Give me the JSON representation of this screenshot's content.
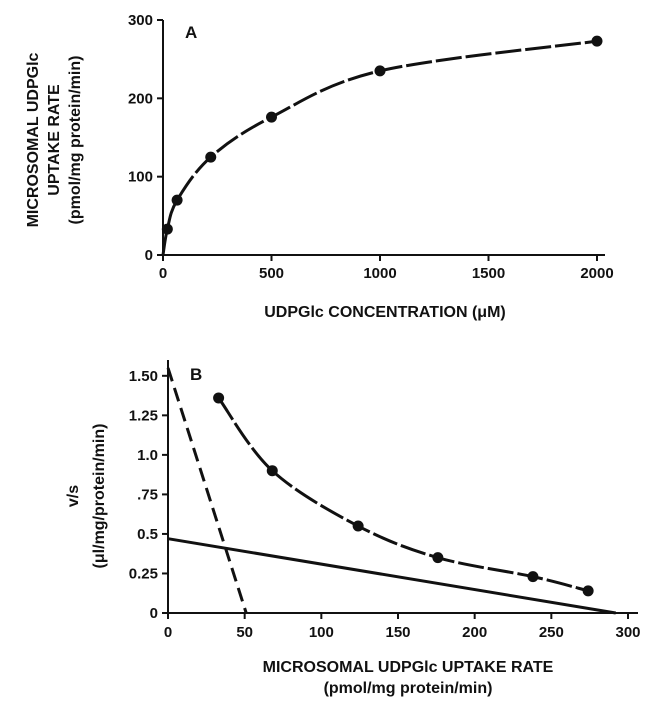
{
  "chart_data": [
    {
      "panel": "A",
      "type": "scatter",
      "xlabel": "UDPGlc CONCENTRATION (μM)",
      "ylabel_lines": [
        "MICROSOMAL UDPGlc",
        "UPTAKE RATE",
        "(pmol/mg protein/min)"
      ],
      "xlim": [
        0,
        2000
      ],
      "ylim": [
        0,
        300
      ],
      "xticks": [
        0,
        500,
        1000,
        1500,
        2000
      ],
      "yticks": [
        0,
        100,
        200,
        300
      ],
      "points": [
        {
          "x": 20,
          "y": 33
        },
        {
          "x": 65,
          "y": 70
        },
        {
          "x": 220,
          "y": 125
        },
        {
          "x": 500,
          "y": 176
        },
        {
          "x": 1000,
          "y": 235
        },
        {
          "x": 2000,
          "y": 273
        }
      ],
      "fit_curve": "dashed line through the points"
    },
    {
      "panel": "B",
      "type": "scatter",
      "xlabel_lines": [
        "MICROSOMAL UDPGlc UPTAKE RATE",
        "(pmol/mg protein/min)"
      ],
      "ylabel_lines": [
        "v/s",
        "(μl/mg/protein/min)"
      ],
      "xlim": [
        0,
        300
      ],
      "ylim": [
        0,
        1.6
      ],
      "xticks": [
        0,
        50,
        100,
        150,
        200,
        250,
        300
      ],
      "yticks": [
        {
          "value": 0,
          "label": "0"
        },
        {
          "value": 0.25,
          "label": "0.25"
        },
        {
          "value": 0.5,
          "label": "0.5"
        },
        {
          "value": 0.75,
          "label": ".75"
        },
        {
          "value": 1.0,
          "label": "1.0"
        },
        {
          "value": 1.25,
          "label": "1.25"
        },
        {
          "value": 1.5,
          "label": "1.50"
        }
      ],
      "points": [
        {
          "x": 33,
          "y": 1.36
        },
        {
          "x": 68,
          "y": 0.9
        },
        {
          "x": 124,
          "y": 0.55
        },
        {
          "x": 176,
          "y": 0.35
        },
        {
          "x": 238,
          "y": 0.23
        },
        {
          "x": 274,
          "y": 0.14
        }
      ],
      "lines": [
        {
          "style": "dashed",
          "from": [
            0,
            1.55
          ],
          "to": [
            51,
            0
          ]
        },
        {
          "style": "solid",
          "from": [
            0,
            0.47
          ],
          "to": [
            292,
            0
          ]
        }
      ]
    }
  ]
}
